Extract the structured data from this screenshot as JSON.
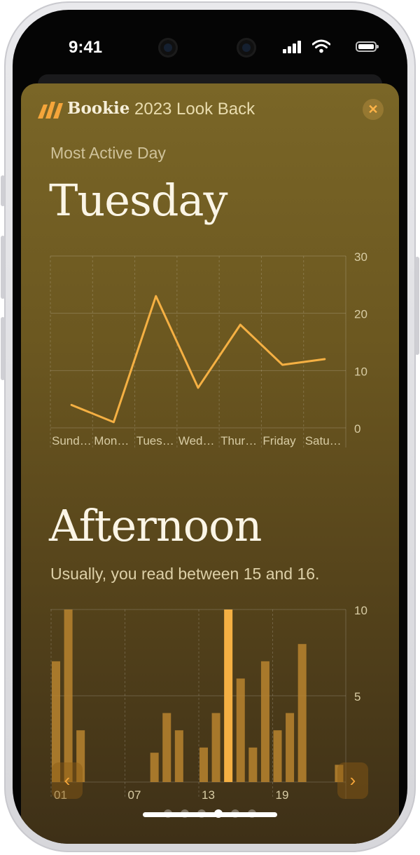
{
  "status_bar": {
    "time": "9:41"
  },
  "header": {
    "app_name": "Bookie",
    "subtitle": "2023 Look Back",
    "close_icon": "close-icon"
  },
  "day_section": {
    "label": "Most Active Day",
    "title": "Tuesday"
  },
  "hour_section": {
    "title": "Afternoon",
    "subtitle": "Usually, you read between 15 and 16."
  },
  "chart_data": [
    {
      "type": "line",
      "categories": [
        "Sund…",
        "Mon…",
        "Tues…",
        "Wed…",
        "Thur…",
        "Friday",
        "Satu…"
      ],
      "values": [
        4,
        1,
        23,
        7,
        18,
        11,
        12
      ],
      "ylim": [
        0,
        30
      ],
      "yticks": [
        0,
        10,
        20,
        30
      ],
      "grid": true,
      "color": "#f5b043"
    },
    {
      "type": "bar",
      "x": [
        1,
        2,
        3,
        4,
        5,
        6,
        7,
        8,
        9,
        10,
        11,
        12,
        13,
        14,
        15,
        16,
        17,
        18,
        19,
        20,
        21,
        22,
        23,
        24
      ],
      "values": [
        7,
        10,
        3,
        0,
        0,
        0,
        0,
        0,
        1.7,
        4,
        3,
        0,
        2,
        4,
        10,
        6,
        2,
        7,
        3,
        4,
        8,
        0,
        0,
        1
      ],
      "highlight_index": 14,
      "ylim": [
        0,
        10
      ],
      "yticks": [
        0,
        5,
        10
      ],
      "xtick_labels": [
        "01",
        "07",
        "13",
        "19"
      ],
      "xtick_positions": [
        1,
        7,
        13,
        19
      ],
      "grid": true,
      "color": "#b8842f",
      "highlight_color": "#f5b043"
    }
  ],
  "nav": {
    "prev_icon": "chevron-left-icon",
    "next_icon": "chevron-right-icon"
  },
  "pager": {
    "count": 6,
    "active": 3
  }
}
